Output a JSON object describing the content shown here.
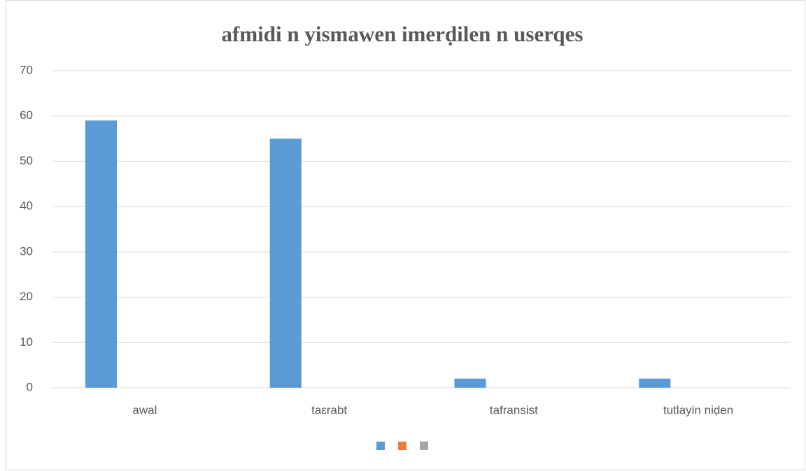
{
  "chart_data": {
    "type": "bar",
    "title": "afmidi n yismawen imerḍilen n userqes",
    "categories": [
      "awal",
      "taεrabt",
      "tafransist",
      "tutlayin niḍen"
    ],
    "series": [
      {
        "color": "#5b9bd5",
        "values": [
          59,
          55,
          2,
          2
        ]
      },
      {
        "color": "#ed7d31",
        "values": [
          null,
          null,
          null,
          null
        ]
      },
      {
        "color": "#a5a5a5",
        "values": [
          null,
          null,
          null,
          null
        ]
      }
    ],
    "ylim": [
      0,
      70
    ],
    "yticks": [
      0,
      10,
      20,
      30,
      40,
      50,
      60,
      70
    ],
    "grid": true,
    "legend": "bottom"
  }
}
